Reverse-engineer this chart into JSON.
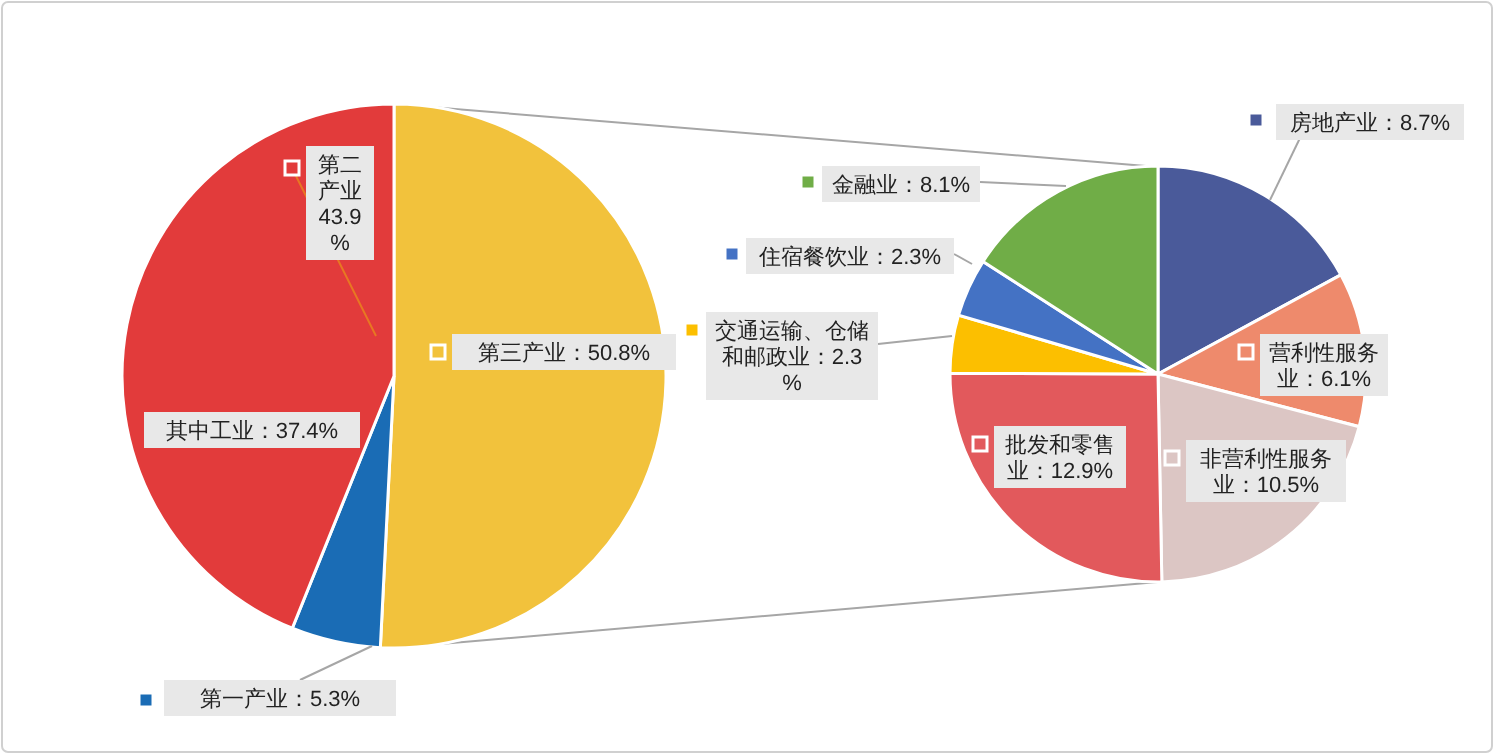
{
  "chart_data": [
    {
      "type": "pie",
      "categories": [
        "第三产业",
        "第一产业",
        "第二产业"
      ],
      "values": [
        50.8,
        5.3,
        43.9
      ],
      "colors": [
        "#f2c23c",
        "#1a6cb5",
        "#e23b3b"
      ],
      "value_labels": [
        "50.8%",
        "5.3%",
        "43.9%"
      ],
      "annotations": [
        "其中工业：37.4%"
      ],
      "legend": "left"
    },
    {
      "type": "pie",
      "categories": [
        "房地产业",
        "营利性服务业",
        "非营利性服务业",
        "批发和零售业",
        "交通运输、仓储和邮政业",
        "住宿餐饮业",
        "金融业"
      ],
      "values": [
        8.7,
        6.1,
        10.5,
        12.9,
        2.3,
        2.3,
        8.1
      ],
      "colors": [
        "#4a5a9a",
        "#ee8a6c",
        "#dcc6c4",
        "#e2595c",
        "#fcbf00",
        "#4472c4",
        "#70ad47"
      ],
      "value_labels": [
        "8.7%",
        "6.1%",
        "10.5%",
        "12.9%",
        "2.3%",
        "2.3%",
        "8.1%"
      ],
      "legend": "top left"
    }
  ]
}
